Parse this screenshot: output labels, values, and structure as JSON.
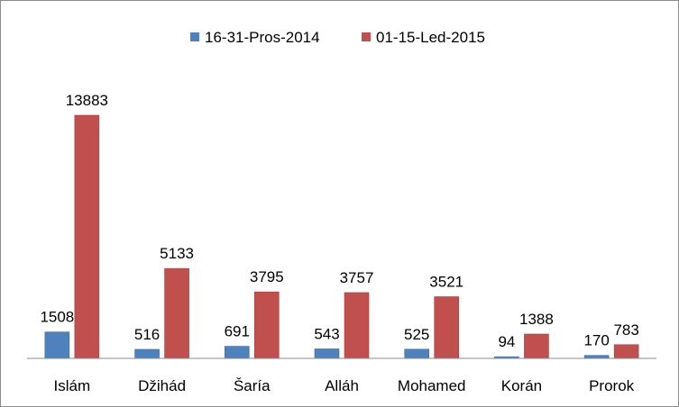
{
  "chart_data": {
    "type": "bar",
    "title": "",
    "xlabel": "",
    "ylabel": "",
    "categories": [
      "Islám",
      "Džihád",
      "Šaría",
      "Alláh",
      "Mohamed",
      "Korán",
      "Prorok"
    ],
    "series": [
      {
        "name": "16-31-Pros-2014",
        "color": "#4f81bd",
        "values": [
          1508,
          516,
          691,
          543,
          525,
          94,
          170
        ]
      },
      {
        "name": "01-15-Led-2015",
        "color": "#c0504d",
        "values": [
          13883,
          5133,
          3795,
          3757,
          3521,
          1388,
          783
        ]
      }
    ],
    "ylim": [
      0,
      15000
    ],
    "grid": false,
    "legend_position": "top",
    "data_labels": true
  }
}
